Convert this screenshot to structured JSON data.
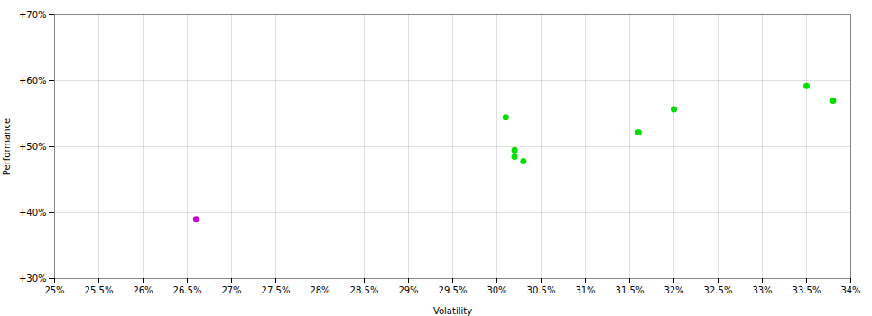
{
  "chart_data": {
    "type": "scatter",
    "xlabel": "Volatility",
    "ylabel": "Performance",
    "xlim": [
      0.25,
      0.34
    ],
    "ylim": [
      0.3,
      0.7
    ],
    "xticks": [
      {
        "value": 0.25,
        "label": "25%"
      },
      {
        "value": 0.255,
        "label": "25.5%"
      },
      {
        "value": 0.26,
        "label": "26%"
      },
      {
        "value": 0.265,
        "label": "26.5%"
      },
      {
        "value": 0.27,
        "label": "27%"
      },
      {
        "value": 0.275,
        "label": "27.5%"
      },
      {
        "value": 0.28,
        "label": "28%"
      },
      {
        "value": 0.285,
        "label": "28.5%"
      },
      {
        "value": 0.29,
        "label": "29%"
      },
      {
        "value": 0.295,
        "label": "29.5%"
      },
      {
        "value": 0.3,
        "label": "30%"
      },
      {
        "value": 0.305,
        "label": "30.5%"
      },
      {
        "value": 0.31,
        "label": "31%"
      },
      {
        "value": 0.315,
        "label": "31.5%"
      },
      {
        "value": 0.32,
        "label": "32%"
      },
      {
        "value": 0.325,
        "label": "32.5%"
      },
      {
        "value": 0.33,
        "label": "33%"
      },
      {
        "value": 0.335,
        "label": "33.5%"
      },
      {
        "value": 0.34,
        "label": "34%"
      }
    ],
    "yticks": [
      {
        "value": 0.3,
        "label": "+30%"
      },
      {
        "value": 0.4,
        "label": "+40%"
      },
      {
        "value": 0.5,
        "label": "+50%"
      },
      {
        "value": 0.6,
        "label": "+60%"
      },
      {
        "value": 0.7,
        "label": "+70%"
      }
    ],
    "grid": true,
    "series": [
      {
        "color": "#00dd00",
        "x": [
          0.301,
          0.302,
          0.302,
          0.303,
          0.316,
          0.32,
          0.335,
          0.338
        ],
        "values": [
          0.545,
          0.495,
          0.485,
          0.478,
          0.522,
          0.557,
          0.592,
          0.57
        ]
      },
      {
        "color": "#cc00cc",
        "x": [
          0.266
        ],
        "values": [
          0.39
        ]
      }
    ]
  }
}
